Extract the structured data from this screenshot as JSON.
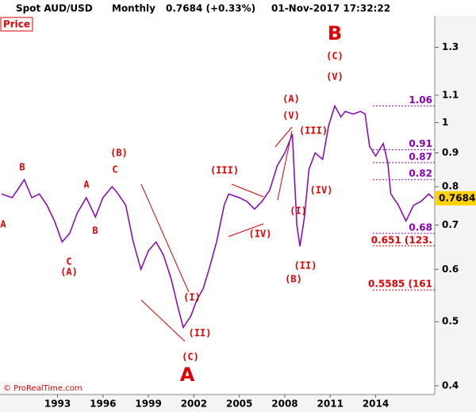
{
  "chart_data": {
    "type": "line",
    "title": "Spot AUD/USD",
    "subtitle": "Monthly",
    "last_value": "0.7684 (+0.33%)",
    "timestamp": "01-Nov-2017 17:32:22",
    "panel_label": "Price",
    "copyright": "© ProRealTime.com",
    "current_price": 0.7684,
    "color": "#8a00b8",
    "log_scale": true,
    "grid": false,
    "x": [
      1989.3,
      1990,
      1990.5,
      1990.8,
      1991.3,
      1991.8,
      1992.3,
      1992.8,
      1993.3,
      1993.8,
      1994.3,
      1994.9,
      1995.5,
      1996,
      1996.6,
      1997,
      1997.5,
      1998,
      1998.5,
      1999,
      1999.5,
      2000,
      2000.5,
      2001,
      2001.3,
      2001.8,
      2002.2,
      2002.6,
      2003,
      2003.5,
      2004,
      2004.3,
      2005,
      2005.5,
      2006,
      2006.5,
      2007,
      2007.5,
      2008,
      2008.5,
      2008.8,
      2009,
      2009.3,
      2009.6,
      2010,
      2010.5,
      2010.9,
      2011.3,
      2011.7,
      2012,
      2012.5,
      2013,
      2013.3,
      2013.6,
      2014,
      2014.5,
      2014.8,
      2015,
      2015.5,
      2016,
      2016.5,
      2017,
      2017.5,
      2017.8
    ],
    "values": [
      0.78,
      0.77,
      0.8,
      0.82,
      0.77,
      0.78,
      0.75,
      0.71,
      0.66,
      0.68,
      0.73,
      0.77,
      0.72,
      0.77,
      0.8,
      0.78,
      0.75,
      0.66,
      0.6,
      0.64,
      0.66,
      0.63,
      0.58,
      0.52,
      0.49,
      0.51,
      0.54,
      0.56,
      0.6,
      0.66,
      0.75,
      0.78,
      0.77,
      0.76,
      0.74,
      0.76,
      0.79,
      0.86,
      0.9,
      0.96,
      0.7,
      0.65,
      0.72,
      0.85,
      0.9,
      0.88,
      0.99,
      1.06,
      1.02,
      1.04,
      1.03,
      1.04,
      1.03,
      0.92,
      0.89,
      0.93,
      0.87,
      0.78,
      0.75,
      0.71,
      0.75,
      0.76,
      0.78,
      0.7684
    ],
    "xlim": [
      1989.2,
      2017.9
    ],
    "ylim": [
      0.388,
      1.45
    ],
    "xticks": [
      1993,
      1996,
      1999,
      2002,
      2005,
      2008,
      2011,
      2014
    ],
    "yticks": [
      1.3,
      1.1,
      1,
      0.9,
      0.8,
      0.7,
      0.6,
      0.5,
      0.4
    ],
    "levels": [
      {
        "value": 1.06,
        "label": "1.06",
        "color": "#8a00b8"
      },
      {
        "value": 0.91,
        "label": "0.91",
        "color": "#8a00b8"
      },
      {
        "value": 0.87,
        "label": "0.87",
        "color": "#8a00b8"
      },
      {
        "value": 0.82,
        "label": "0.82",
        "color": "#8a00b8"
      },
      {
        "value": 0.68,
        "label": "0.68",
        "color": "#8a00b8"
      },
      {
        "value": 0.651,
        "label": "0.651 (123.",
        "color": "#e00000"
      },
      {
        "value": 0.5585,
        "label": "0.5585 (161",
        "color": "#e00000"
      }
    ],
    "annotations": [
      "A",
      "B",
      "C",
      "(A)",
      "A",
      "B",
      "(B)",
      "C",
      "(III)",
      "(IV)",
      "(I)",
      "(II)",
      "(C)",
      "A",
      "(A)",
      "(V)",
      "(III)",
      "(IV)",
      "(I)",
      "(II)",
      "(B)",
      "B",
      "(C)",
      "(V)"
    ]
  }
}
